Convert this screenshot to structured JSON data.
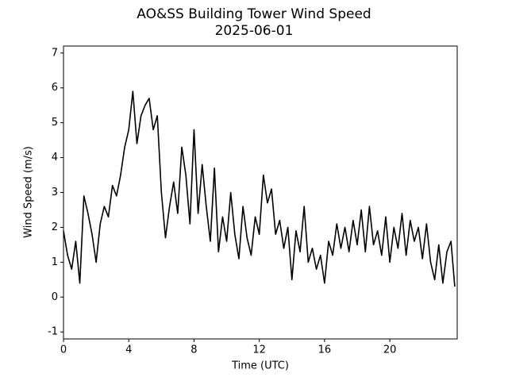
{
  "chart_data": {
    "type": "line",
    "title": "AO&SS Building Tower Wind Speed",
    "subtitle": "2025-06-01",
    "xlabel": "Time (UTC)",
    "ylabel": "Wind Speed (m/s)",
    "x": [
      0,
      0.25,
      0.5,
      0.75,
      1,
      1.25,
      1.5,
      1.75,
      2,
      2.25,
      2.5,
      2.75,
      3,
      3.25,
      3.5,
      3.75,
      4,
      4.25,
      4.5,
      4.75,
      5,
      5.25,
      5.5,
      5.75,
      6,
      6.25,
      6.5,
      6.75,
      7,
      7.25,
      7.5,
      7.75,
      8,
      8.25,
      8.5,
      8.75,
      9,
      9.25,
      9.5,
      9.75,
      10,
      10.25,
      10.5,
      10.75,
      11,
      11.25,
      11.5,
      11.75,
      12,
      12.25,
      12.5,
      12.75,
      13,
      13.25,
      13.5,
      13.75,
      14,
      14.25,
      14.5,
      14.75,
      15,
      15.25,
      15.5,
      15.75,
      16,
      16.25,
      16.5,
      16.75,
      17,
      17.25,
      17.5,
      17.75,
      18,
      18.25,
      18.5,
      18.75,
      19,
      19.25,
      19.5,
      19.75,
      20,
      20.25,
      20.5,
      20.75,
      21,
      21.25,
      21.5,
      21.75,
      22,
      22.25,
      22.5,
      22.75,
      23,
      23.25,
      23.5,
      23.75,
      23.98
    ],
    "series": [
      {
        "name": "Wind Speed",
        "color": "#000000",
        "values": [
          1.9,
          1.2,
          0.8,
          1.6,
          0.4,
          2.9,
          2.4,
          1.8,
          1.0,
          2.1,
          2.6,
          2.3,
          3.2,
          2.9,
          3.5,
          4.3,
          4.8,
          5.9,
          4.4,
          5.2,
          5.5,
          5.7,
          4.8,
          5.2,
          3.0,
          1.7,
          2.6,
          3.3,
          2.4,
          4.3,
          3.5,
          2.1,
          4.8,
          2.4,
          3.8,
          2.6,
          1.6,
          3.7,
          1.3,
          2.3,
          1.6,
          3.0,
          1.8,
          1.1,
          2.6,
          1.7,
          1.2,
          2.3,
          1.8,
          3.5,
          2.7,
          3.1,
          1.8,
          2.2,
          1.4,
          2.0,
          0.5,
          1.9,
          1.3,
          2.6,
          1.0,
          1.4,
          0.8,
          1.2,
          0.4,
          1.6,
          1.2,
          2.1,
          1.4,
          2.0,
          1.3,
          2.2,
          1.5,
          2.5,
          1.3,
          2.6,
          1.5,
          1.9,
          1.2,
          2.3,
          1.0,
          2.0,
          1.4,
          2.4,
          1.2,
          2.2,
          1.6,
          2.0,
          1.1,
          2.1,
          1.0,
          0.5,
          1.5,
          0.4,
          1.3,
          1.6,
          0.3
        ]
      }
    ],
    "xlim": [
      0,
      24.13
    ],
    "xticks": [
      0,
      4,
      8,
      12,
      16,
      20
    ],
    "ylim": [
      -1.2,
      7.2
    ],
    "yticks": [
      -1,
      0,
      1,
      2,
      3,
      4,
      5,
      6,
      7
    ],
    "grid": false
  }
}
